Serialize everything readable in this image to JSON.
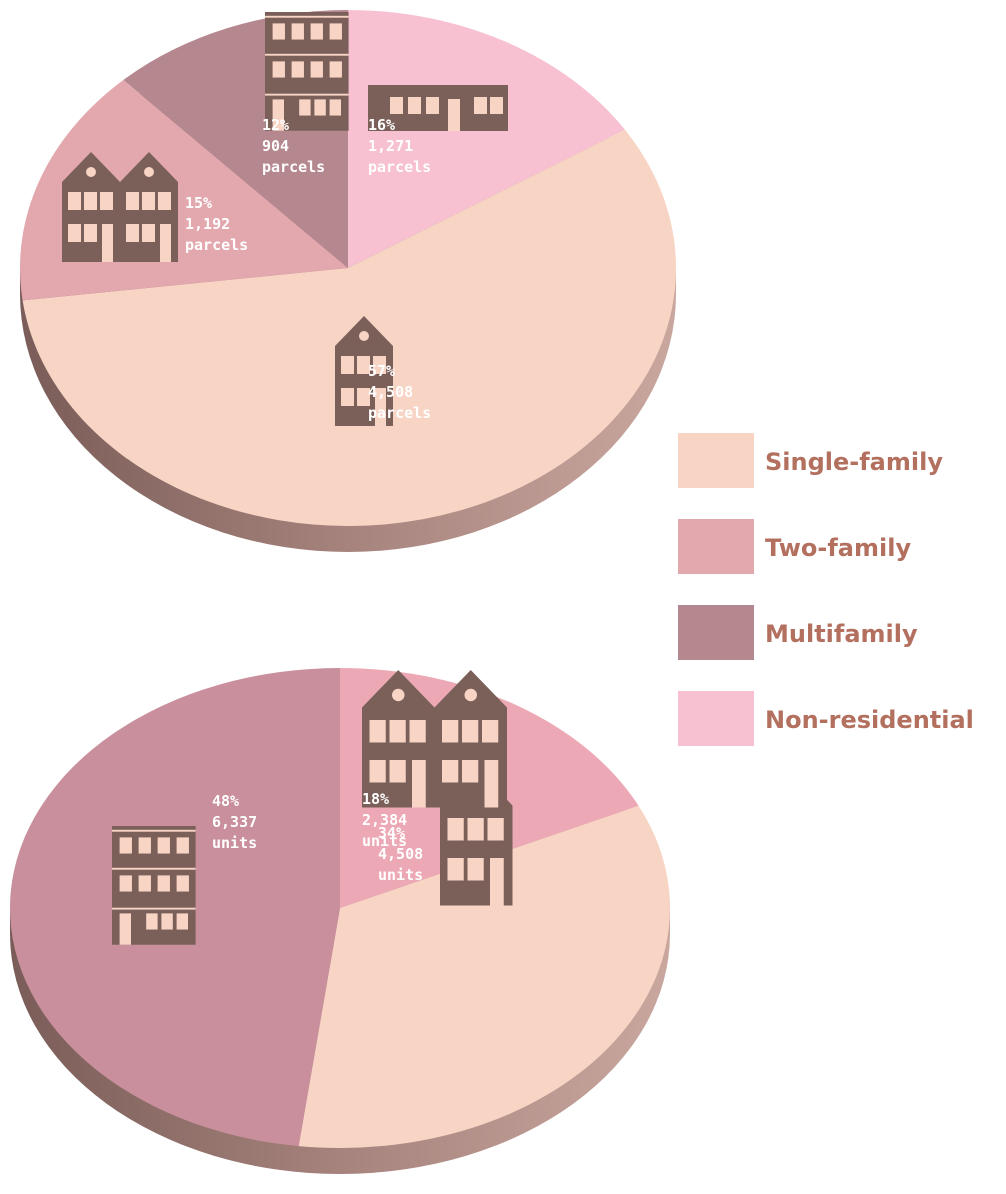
{
  "chart_data": [
    {
      "type": "pie",
      "categories": [
        "Single-family",
        "Two-family",
        "Multifamily",
        "Non-residential"
      ],
      "values": [
        57,
        15,
        12,
        16
      ],
      "value_labels": [
        "57%",
        "15%",
        "12%",
        "16%"
      ],
      "counts": [
        4508,
        1192,
        904,
        1271
      ],
      "count_labels": [
        "4,508",
        "1,192",
        "904",
        "1,271"
      ],
      "unit": "parcels",
      "colors": [
        "#f8d4c5",
        "#e3a7ae",
        "#b5878f",
        "#f7c1d2"
      ],
      "legend": true
    },
    {
      "type": "pie",
      "categories": [
        "Single-family",
        "Two-family",
        "Multifamily"
      ],
      "values": [
        34,
        18,
        48
      ],
      "value_labels": [
        "34%",
        "18%",
        "48%"
      ],
      "counts": [
        4508,
        2384,
        6337
      ],
      "count_labels": [
        "4,508",
        "2,384",
        "6,337"
      ],
      "unit": "units",
      "colors": [
        "#f8d4c5",
        "#eca9b5",
        "#c98f9c"
      ]
    }
  ]
}
